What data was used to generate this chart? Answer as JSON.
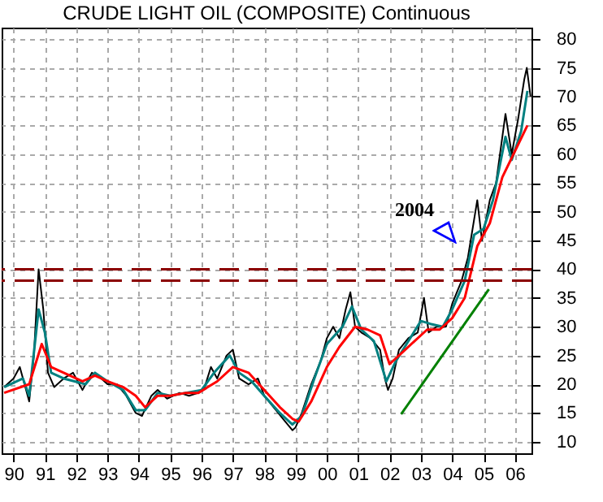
{
  "chart_data": {
    "type": "line",
    "title": "CRUDE LIGHT OIL (COMPOSITE) Continuous",
    "xlim": [
      1989.62,
      2006.53
    ],
    "ylim": [
      8,
      82
    ],
    "xticks": [
      {
        "value": 1990,
        "label": "90"
      },
      {
        "value": 1991,
        "label": "91"
      },
      {
        "value": 1992,
        "label": "92"
      },
      {
        "value": 1993,
        "label": "93"
      },
      {
        "value": 1994,
        "label": "94"
      },
      {
        "value": 1995,
        "label": "95"
      },
      {
        "value": 1996,
        "label": "96"
      },
      {
        "value": 1997,
        "label": "97"
      },
      {
        "value": 1998,
        "label": "98"
      },
      {
        "value": 1999,
        "label": "99"
      },
      {
        "value": 2000,
        "label": "00"
      },
      {
        "value": 2001,
        "label": "01"
      },
      {
        "value": 2002,
        "label": "02"
      },
      {
        "value": 2003,
        "label": "03"
      },
      {
        "value": 2004,
        "label": "04"
      },
      {
        "value": 2005,
        "label": "05"
      },
      {
        "value": 2006,
        "label": "06"
      }
    ],
    "yticks": [
      10,
      15,
      20,
      25,
      30,
      35,
      40,
      45,
      50,
      55,
      60,
      65,
      70,
      75,
      80
    ],
    "grid": true,
    "marker": "none",
    "series": [
      {
        "color": "#000000",
        "x": [
          1989.7,
          1990.0,
          1990.2,
          1990.4,
          1990.5,
          1990.65,
          1990.8,
          1990.95,
          1991.1,
          1991.3,
          1991.6,
          1991.9,
          1992.2,
          1992.5,
          1992.8,
          1993.0,
          1993.3,
          1993.6,
          1993.9,
          1994.1,
          1994.4,
          1994.6,
          1994.9,
          1995.3,
          1995.6,
          1995.9,
          1996.1,
          1996.3,
          1996.5,
          1996.8,
          1997.0,
          1997.2,
          1997.5,
          1997.8,
          1998.0,
          1998.3,
          1998.6,
          1998.9,
          1999.0,
          1999.2,
          1999.5,
          1999.8,
          2000.0,
          2000.2,
          2000.4,
          2000.6,
          2000.75,
          2000.9,
          2001.1,
          2001.4,
          2001.7,
          2001.85,
          2001.95,
          2002.1,
          2002.3,
          2002.6,
          2002.9,
          2003.1,
          2003.25,
          2003.5,
          2003.8,
          2004.0,
          2004.3,
          2004.5,
          2004.8,
          2004.95,
          2005.2,
          2005.4,
          2005.7,
          2005.9,
          2006.1,
          2006.3,
          2006.38,
          2006.5
        ],
        "values": [
          19.5,
          21,
          23,
          19,
          17,
          25,
          40,
          33,
          22,
          19.5,
          21,
          22,
          19,
          22,
          21,
          20,
          20,
          18,
          15,
          14.5,
          18,
          19,
          17.5,
          18.5,
          18,
          18.5,
          19.5,
          23,
          21,
          25,
          26,
          21,
          20,
          21,
          18,
          16,
          14,
          12,
          12.5,
          15,
          20,
          24,
          28,
          30,
          28,
          33,
          36,
          30,
          29,
          28,
          26,
          21,
          19,
          21,
          26,
          28,
          29,
          35,
          29,
          30,
          30,
          34,
          38,
          42,
          52,
          45,
          52,
          55,
          67,
          60,
          66,
          73,
          75,
          70
        ]
      },
      {
        "color": "#008080",
        "x": [
          1989.7,
          1990.3,
          1990.5,
          1990.8,
          1991.0,
          1991.2,
          1991.6,
          1992.3,
          1992.6,
          1993.0,
          1993.5,
          1993.9,
          1994.2,
          1994.6,
          1995.0,
          1995.5,
          1996.0,
          1996.4,
          1996.9,
          1997.2,
          1997.6,
          1998.0,
          1998.5,
          1998.9,
          1999.2,
          1999.6,
          2000.0,
          2000.5,
          2000.8,
          2001.1,
          2001.5,
          2001.9,
          2002.2,
          2002.6,
          2003.0,
          2003.3,
          2003.7,
          2004.0,
          2004.4,
          2004.7,
          2005.0,
          2005.3,
          2005.7,
          2005.9,
          2006.2,
          2006.4
        ],
        "values": [
          19.5,
          21,
          18,
          33,
          29,
          22,
          21,
          20,
          22,
          20.5,
          19,
          15.5,
          15.5,
          18.5,
          18,
          18.5,
          19,
          22,
          25,
          22,
          20.5,
          18,
          15,
          13,
          14.5,
          21,
          27,
          30,
          33.5,
          29.5,
          27.5,
          20.5,
          24,
          27.5,
          31,
          30.5,
          30,
          33,
          38,
          46,
          47,
          52,
          63,
          59,
          64,
          71
        ]
      },
      {
        "color": "#ff0000",
        "x": [
          1989.7,
          1990.5,
          1990.9,
          1991.2,
          1991.6,
          1992.2,
          1992.6,
          1993.0,
          1993.5,
          1993.9,
          1994.2,
          1994.6,
          1995.0,
          1995.5,
          1995.9,
          1996.5,
          1997.0,
          1997.5,
          1998.0,
          1998.5,
          1998.9,
          1999.1,
          1999.5,
          2000.0,
          2000.4,
          2000.9,
          2001.3,
          2001.7,
          2002.0,
          2002.4,
          2002.8,
          2003.2,
          2003.6,
          2004.0,
          2004.4,
          2004.8,
          2005.2,
          2005.6,
          2006.0,
          2006.4
        ],
        "values": [
          18.5,
          20,
          27,
          23,
          22,
          20.5,
          21.5,
          20.5,
          19.5,
          18,
          16,
          18,
          18,
          18.5,
          18.5,
          20.5,
          23,
          22,
          19,
          16,
          14,
          13.5,
          17,
          23,
          26.5,
          30,
          29.5,
          28.5,
          23.5,
          25.5,
          27.5,
          29.5,
          29.5,
          31.5,
          35,
          44,
          48,
          56,
          60.5,
          65
        ]
      },
      {
        "color": "#008000",
        "x": [
          2002.37,
          2005.17
        ],
        "values": [
          14.8,
          36.5
        ]
      }
    ],
    "ref_lines": [
      {
        "axis": "y",
        "value": 40,
        "color": "#8b0000",
        "line_style": "dashed"
      },
      {
        "axis": "y",
        "value": 38,
        "color": "#8b0000",
        "line_style": "dashed"
      }
    ],
    "annotations": [
      "2004"
    ]
  }
}
